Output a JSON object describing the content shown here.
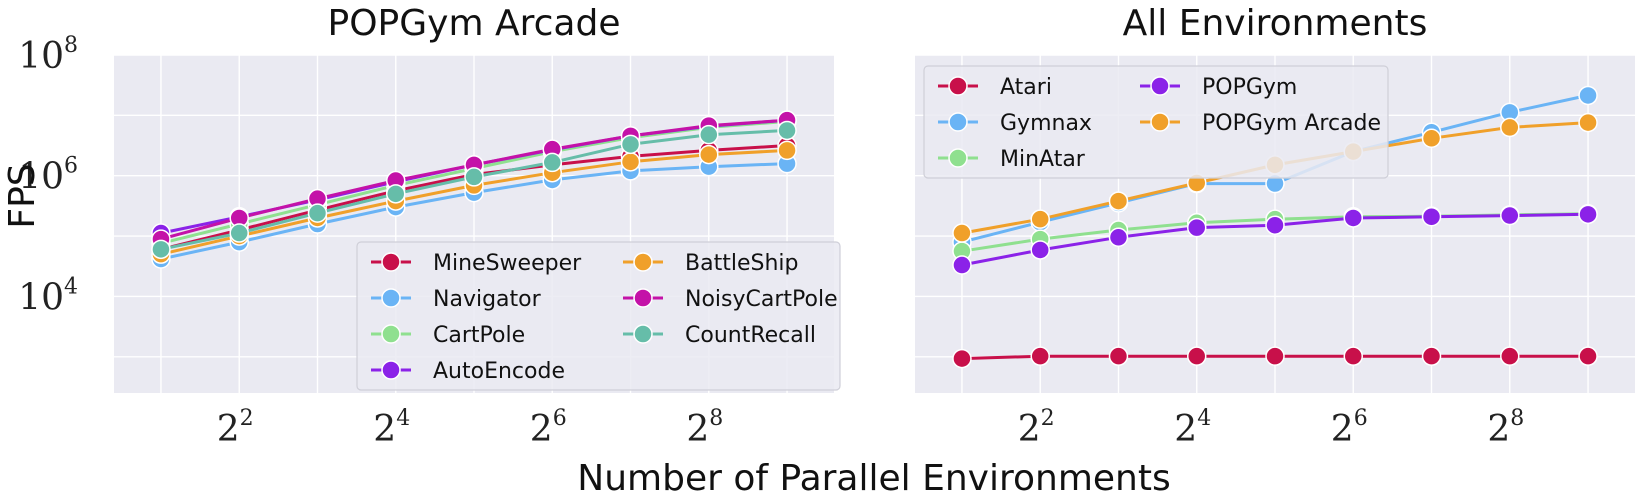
{
  "figure": {
    "xlabel": "Number of Parallel Environments",
    "ylabel": "FPS",
    "x_tick_base": "2",
    "y_tick_base": "10"
  },
  "chart_data": [
    {
      "type": "line",
      "title": "POPGym Arcade",
      "xscale": "log2",
      "yscale": "log10",
      "x": [
        2,
        4,
        8,
        16,
        32,
        64,
        128,
        256,
        512
      ],
      "xlim_log2": [
        0.4,
        9.6
      ],
      "ylim_log10": [
        2.4,
        8.0
      ],
      "x_tick_exponents": [
        2,
        4,
        6,
        8
      ],
      "y_tick_exponents": [
        4,
        6,
        8
      ],
      "legend": {
        "position": "lower-right",
        "columns": 2
      },
      "series": [
        {
          "name": "MineSweeper",
          "color": "#c8104a",
          "values_log10": [
            4.78,
            5.1,
            5.43,
            5.75,
            6.02,
            6.18,
            6.32,
            6.42,
            6.5
          ]
        },
        {
          "name": "Navigator",
          "color": "#6ab4f5",
          "values_log10": [
            4.62,
            4.9,
            5.2,
            5.48,
            5.72,
            5.93,
            6.08,
            6.15,
            6.2
          ]
        },
        {
          "name": "CartPole",
          "color": "#8fe08f",
          "values_log10": [
            4.88,
            5.2,
            5.52,
            5.84,
            6.12,
            6.4,
            6.63,
            6.8,
            6.9
          ]
        },
        {
          "name": "AutoEncode",
          "color": "#8b22e8",
          "values_log10": [
            5.05,
            5.32,
            5.6,
            5.9,
            6.18,
            6.43,
            6.66,
            6.82,
            6.92
          ]
        },
        {
          "name": "BattleShip",
          "color": "#f0a02a",
          "values_log10": [
            4.7,
            5.0,
            5.3,
            5.58,
            5.84,
            6.05,
            6.23,
            6.35,
            6.42
          ]
        },
        {
          "name": "NoisyCartPole",
          "color": "#c412a8",
          "values_log10": [
            4.95,
            5.3,
            5.62,
            5.92,
            6.18,
            6.44,
            6.66,
            6.83,
            6.92
          ]
        },
        {
          "name": "CountRecall",
          "color": "#66bda9",
          "values_log10": [
            4.78,
            5.05,
            5.38,
            5.7,
            5.98,
            6.22,
            6.52,
            6.68,
            6.75
          ]
        }
      ]
    },
    {
      "type": "line",
      "title": "All Environments",
      "xscale": "log2",
      "yscale": "log10",
      "x": [
        2,
        4,
        8,
        16,
        32,
        64,
        128,
        256,
        512
      ],
      "xlim_log2": [
        0.4,
        9.6
      ],
      "ylim_log10": [
        2.4,
        8.0
      ],
      "x_tick_exponents": [
        2,
        4,
        6,
        8
      ],
      "y_tick_exponents": [
        4,
        6,
        8
      ],
      "legend": {
        "position": "upper-left",
        "columns": 2
      },
      "series": [
        {
          "name": "Atari",
          "color": "#c8104a",
          "values_log10": [
            2.97,
            3.01,
            3.01,
            3.01,
            3.01,
            3.01,
            3.01,
            3.01,
            3.01
          ]
        },
        {
          "name": "Gymnax",
          "color": "#6ab4f5",
          "values_log10": [
            4.9,
            5.23,
            5.55,
            5.87,
            5.87,
            6.4,
            6.72,
            7.05,
            7.33
          ]
        },
        {
          "name": "MinAtar",
          "color": "#8fe08f",
          "values_log10": [
            4.75,
            4.95,
            5.1,
            5.22,
            5.28,
            5.32,
            5.33,
            5.35,
            5.37
          ]
        },
        {
          "name": "POPGym",
          "color": "#8b22e8",
          "values_log10": [
            4.52,
            4.77,
            4.98,
            5.14,
            5.18,
            5.3,
            5.32,
            5.34,
            5.36
          ]
        },
        {
          "name": "POPGym Arcade",
          "color": "#f0a02a",
          "values_log10": [
            5.05,
            5.28,
            5.58,
            5.88,
            6.18,
            6.4,
            6.62,
            6.8,
            6.88
          ]
        }
      ]
    }
  ]
}
